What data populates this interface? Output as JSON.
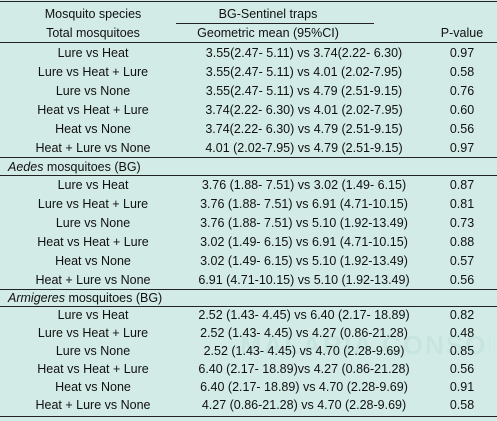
{
  "header": {
    "col1_top": "Mosquito species",
    "col1_bottom": "Total mosquitoes",
    "col2_top": "BG-Sentinel traps",
    "col2_bottom": "Geometric mean (95%CI)",
    "col3": "P-value"
  },
  "watermark": "MALARIA CONSORTIUM",
  "sections": [
    {
      "rows": [
        {
          "comparison": "Lure vs Heat",
          "gm": "3.55(2.47- 5.11) vs 3.74(2.22- 6.30)",
          "p": "0.97"
        },
        {
          "comparison": "Lure vs Heat + Lure",
          "gm": "3.55(2.47- 5.11) vs 4.01 (2.02-7.95)",
          "p": "0.58"
        },
        {
          "comparison": "Lure vs None",
          "gm": "3.55(2.47- 5.11) vs 4.79 (2.51-9.15)",
          "p": "0.76"
        },
        {
          "comparison": "Heat vs Heat + Lure",
          "gm": "3.74(2.22- 6.30) vs 4.01 (2.02-7.95)",
          "p": "0.60"
        },
        {
          "comparison": "Heat vs None",
          "gm": "3.74(2.22- 6.30) vs 4.79 (2.51-9.15)",
          "p": "0.56"
        },
        {
          "comparison": "Heat + Lure vs None",
          "gm": "4.01 (2.02-7.95) vs 4.79 (2.51-9.15)",
          "p": "0.97"
        }
      ]
    },
    {
      "title_italic": "Aedes",
      "title_rest": " mosquitoes (BG)",
      "rows": [
        {
          "comparison": "Lure vs Heat",
          "gm": "3.76 (1.88- 7.51) vs 3.02 (1.49- 6.15)",
          "p": "0.87"
        },
        {
          "comparison": "Lure vs Heat + Lure",
          "gm": "3.76 (1.88- 7.51) vs 6.91 (4.71-10.15)",
          "p": "0.81"
        },
        {
          "comparison": "Lure vs None",
          "gm": "3.76 (1.88- 7.51) vs 5.10 (1.92-13.49)",
          "p": "0.73"
        },
        {
          "comparison": "Heat vs Heat + Lure",
          "gm": "3.02 (1.49- 6.15) vs 6.91 (4.71-10.15)",
          "p": "0.88"
        },
        {
          "comparison": "Heat vs None",
          "gm": "3.02 (1.49- 6.15) vs 5.10 (1.92-13.49)",
          "p": "0.57"
        },
        {
          "comparison": "Heat + Lure vs None",
          "gm": "6.91 (4.71-10.15) vs 5.10 (1.92-13.49)",
          "p": "0.56"
        }
      ]
    },
    {
      "title_italic": "Armigeres",
      "title_rest": " mosquitoes (BG)",
      "rows": [
        {
          "comparison": "Lure vs Heat",
          "gm": "2.52 (1.43- 4.45) vs 6.40 (2.17- 18.89)",
          "p": "0.82"
        },
        {
          "comparison": "Lure vs Heat + Lure",
          "gm": "2.52 (1.43- 4.45) vs 4.27 (0.86-21.28)",
          "p": "0.48"
        },
        {
          "comparison": "Lure vs None",
          "gm": "2.52 (1.43- 4.45) vs 4.70 (2.28-9.69)",
          "p": "0.85"
        },
        {
          "comparison": "Heat vs Heat + Lure",
          "gm": "6.40 (2.17- 18.89)vs 4.27 (0.86-21.28)",
          "p": "0.56"
        },
        {
          "comparison": "Heat vs None",
          "gm": "6.40 (2.17- 18.89) vs 4.70 (2.28-9.69)",
          "p": "0.91"
        },
        {
          "comparison": "Heat + Lure vs None",
          "gm": "4.27 (0.86-21.28) vs 4.70 (2.28-9.69)",
          "p": "0.58"
        }
      ]
    }
  ]
}
